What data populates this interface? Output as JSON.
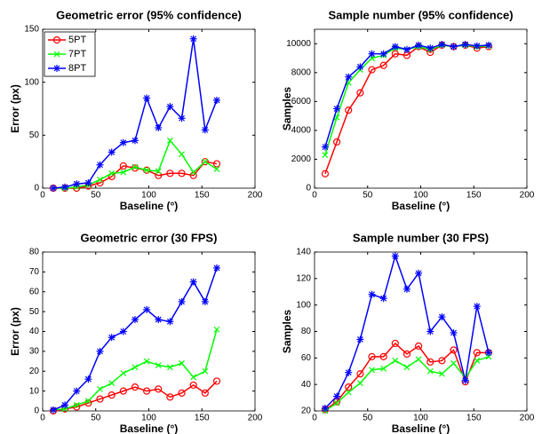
{
  "chart_data": [
    {
      "type": "line",
      "title": "Geometric error (95% confidence)",
      "xlabel": "Baseline (°)",
      "ylabel": "Error (px)",
      "x": [
        10,
        21,
        32,
        43,
        54,
        65,
        76,
        87,
        98,
        109,
        120,
        131,
        142,
        153,
        164
      ],
      "xlim": [
        0,
        200
      ],
      "xticks": [
        0,
        50,
        100,
        150,
        200
      ],
      "ylim": [
        0,
        150
      ],
      "yticks": [
        0,
        50,
        100,
        150
      ],
      "legend": "upper left",
      "series": [
        {
          "name": "5PT",
          "color": "#ff0000",
          "marker": "o",
          "values": [
            0,
            0,
            0,
            2,
            5,
            11,
            21,
            19,
            17,
            12,
            14,
            14,
            12,
            25,
            23
          ]
        },
        {
          "name": "7PT",
          "color": "#00ff00",
          "marker": "x",
          "values": [
            0,
            0,
            1,
            3,
            8,
            14,
            15,
            20,
            17,
            16,
            45,
            32,
            15,
            25,
            18
          ]
        },
        {
          "name": "8PT",
          "color": "#0000ff",
          "marker": "*",
          "values": [
            0,
            1,
            4,
            5,
            22,
            34,
            43,
            45,
            85,
            57,
            77,
            66,
            141,
            55,
            83
          ]
        }
      ]
    },
    {
      "type": "line",
      "title": "Sample number (95% confidence)",
      "xlabel": "Baseline (°)",
      "ylabel": "Samples",
      "x": [
        10,
        21,
        32,
        43,
        54,
        65,
        76,
        87,
        98,
        109,
        120,
        131,
        142,
        153,
        164
      ],
      "xlim": [
        0,
        200
      ],
      "xticks": [
        0,
        50,
        100,
        150,
        200
      ],
      "ylim": [
        0,
        11000
      ],
      "yticks": [
        0,
        2000,
        4000,
        6000,
        8000,
        10000
      ],
      "series": [
        {
          "name": "5PT",
          "color": "#ff0000",
          "marker": "o",
          "values": [
            1000,
            3200,
            5400,
            6600,
            8200,
            8500,
            9300,
            9200,
            9800,
            9400,
            9900,
            9800,
            9900,
            9700,
            9800
          ]
        },
        {
          "name": "7PT",
          "color": "#00ff00",
          "marker": "x",
          "values": [
            2300,
            4900,
            7300,
            8200,
            9000,
            9200,
            9700,
            9600,
            9800,
            9600,
            9900,
            9800,
            9900,
            9800,
            9850
          ]
        },
        {
          "name": "8PT",
          "color": "#0000ff",
          "marker": "*",
          "values": [
            2850,
            5500,
            7700,
            8400,
            9300,
            9300,
            9800,
            9600,
            9900,
            9700,
            9950,
            9800,
            9950,
            9850,
            9900
          ]
        }
      ]
    },
    {
      "type": "line",
      "title": "Geometric error (30 FPS)",
      "xlabel": "Baseline (°)",
      "ylabel": "Error (px)",
      "x": [
        10,
        21,
        32,
        43,
        54,
        65,
        76,
        87,
        98,
        109,
        120,
        131,
        142,
        153,
        164
      ],
      "xlim": [
        0,
        200
      ],
      "xticks": [
        0,
        50,
        100,
        150,
        200
      ],
      "ylim": [
        0,
        80
      ],
      "yticks": [
        0,
        10,
        20,
        30,
        40,
        50,
        60,
        70,
        80
      ],
      "series": [
        {
          "name": "5PT",
          "color": "#ff0000",
          "marker": "o",
          "values": [
            0,
            1,
            2,
            4,
            6,
            8,
            10,
            12,
            10,
            11,
            7,
            9,
            13,
            9,
            15
          ]
        },
        {
          "name": "7PT",
          "color": "#00ff00",
          "marker": "x",
          "values": [
            0.5,
            1,
            3,
            5,
            11,
            14,
            19,
            22,
            25,
            23,
            22,
            24,
            17,
            20,
            41
          ]
        },
        {
          "name": "8PT",
          "color": "#0000ff",
          "marker": "*",
          "values": [
            0.5,
            3,
            10,
            16,
            30,
            37,
            40,
            46,
            51,
            46,
            45,
            55,
            65,
            55,
            72
          ]
        }
      ]
    },
    {
      "type": "line",
      "title": "Sample number (30 FPS)",
      "xlabel": "Baseline (°)",
      "ylabel": "Samples",
      "x": [
        10,
        21,
        32,
        43,
        54,
        65,
        76,
        87,
        98,
        109,
        120,
        131,
        142,
        153,
        164
      ],
      "xlim": [
        0,
        200
      ],
      "xticks": [
        0,
        50,
        100,
        150,
        200
      ],
      "ylim": [
        20,
        140
      ],
      "yticks": [
        20,
        40,
        60,
        80,
        100,
        120,
        140
      ],
      "series": [
        {
          "name": "5PT",
          "color": "#ff0000",
          "marker": "o",
          "values": [
            21,
            27,
            38,
            48,
            61,
            61,
            71,
            63,
            69,
            57,
            58,
            66,
            42,
            64,
            64
          ]
        },
        {
          "name": "7PT",
          "color": "#00ff00",
          "marker": "x",
          "values": [
            20,
            26,
            34,
            41,
            51,
            52,
            58,
            53,
            59,
            50,
            48,
            56,
            45,
            58,
            61
          ]
        },
        {
          "name": "8PT",
          "color": "#0000ff",
          "marker": "*",
          "values": [
            22,
            31,
            49,
            74,
            108,
            105,
            137,
            112,
            124,
            80,
            91,
            79,
            43,
            99,
            64
          ]
        }
      ]
    }
  ]
}
